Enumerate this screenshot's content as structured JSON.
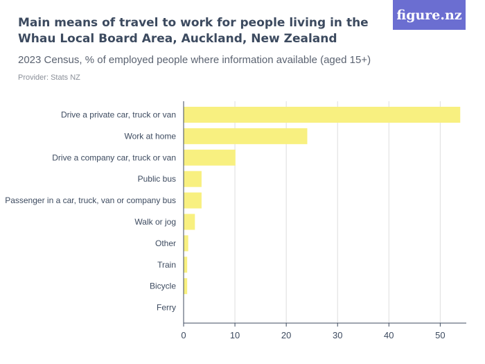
{
  "header": {
    "title": "Main means of travel to work for people living in the Whau Local Board Area, Auckland, New Zealand",
    "subtitle": "2023 Census, % of employed people where information available (aged 15+)",
    "provider": "Provider: Stats NZ",
    "logo_text": "figure.nz"
  },
  "colors": {
    "bar": "#f8f080",
    "grid": "#dddddd",
    "axis": "#3c4a5f",
    "logo_bg": "#6b6ed1"
  },
  "chart_data": {
    "type": "bar",
    "orientation": "horizontal",
    "categories": [
      "Drive a private car, truck or van",
      "Work at home",
      "Drive a company car, truck or van",
      "Public bus",
      "Passenger in a car, truck, van or company bus",
      "Walk or jog",
      "Other",
      "Train",
      "Bicycle",
      "Ferry"
    ],
    "values": [
      53.9,
      24.1,
      10.1,
      3.5,
      3.5,
      2.2,
      0.9,
      0.7,
      0.7,
      0.05
    ],
    "xticks": [
      0,
      10,
      20,
      30,
      40,
      50
    ],
    "xlim": [
      0,
      54
    ],
    "title": "Main means of travel to work for people living in the Whau Local Board Area, Auckland, New Zealand",
    "subtitle": "2023 Census, % of employed people where information available (aged 15+)",
    "xlabel": "",
    "ylabel": "",
    "grid": true,
    "legend": "none"
  }
}
